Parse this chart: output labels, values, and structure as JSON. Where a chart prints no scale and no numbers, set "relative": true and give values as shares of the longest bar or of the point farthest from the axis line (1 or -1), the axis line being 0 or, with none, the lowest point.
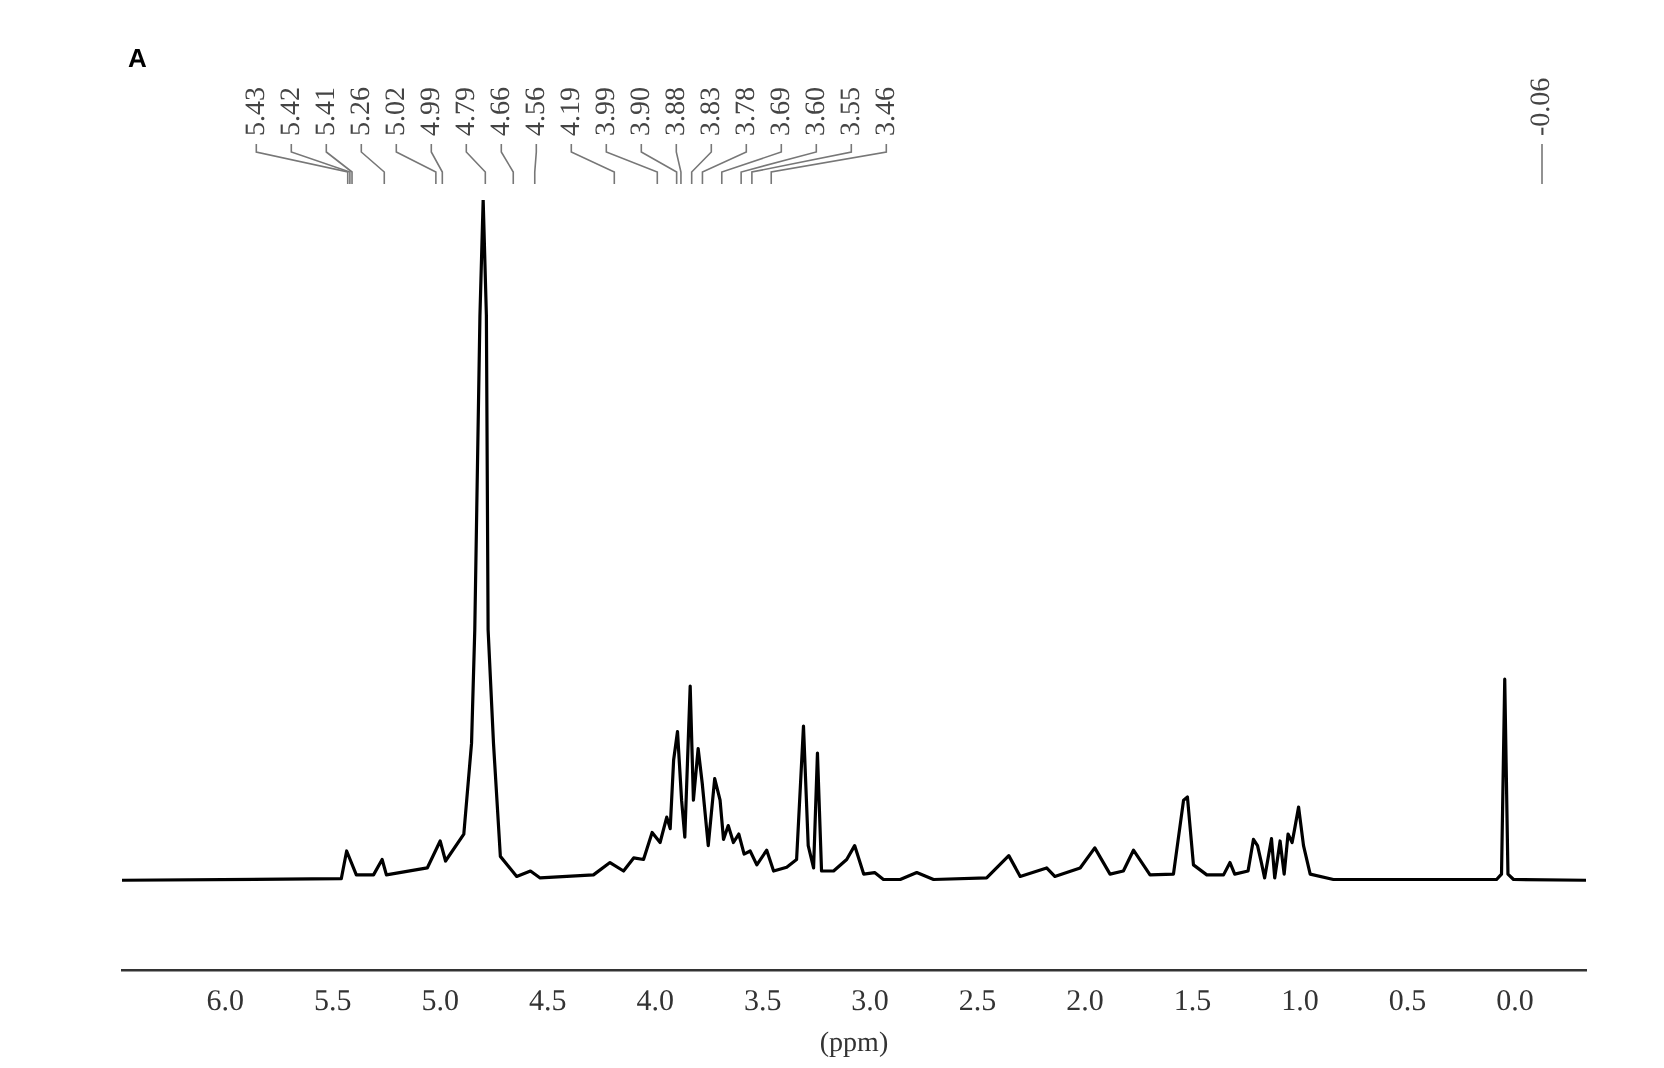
{
  "chart_data": {
    "type": "line",
    "title": "A",
    "xlabel": "(ppm)",
    "relative": true,
    "grid": false,
    "legend": false,
    "marker": "none",
    "line_style": "solid",
    "xlim": [
      6.48,
      -0.33
    ],
    "xticks": [
      {
        "value": 6,
        "label": "6.0"
      },
      {
        "value": 5.5,
        "label": "5.5"
      },
      {
        "value": 5,
        "label": "5.0"
      },
      {
        "value": 4.5,
        "label": "4.5"
      },
      {
        "value": 4,
        "label": "4.0"
      },
      {
        "value": 3.5,
        "label": "3.5"
      },
      {
        "value": 3,
        "label": "3.0"
      },
      {
        "value": 2.5,
        "label": "2.5"
      },
      {
        "value": 2,
        "label": "2.0"
      },
      {
        "value": 1.5,
        "label": "1.5"
      },
      {
        "value": 1,
        "label": "1.0"
      },
      {
        "value": 0.5,
        "label": "0.5"
      },
      {
        "value": 0,
        "label": "0.0"
      }
    ],
    "series": [
      {
        "color": "#000000",
        "x": [
          6.48,
          5.46,
          5.435,
          5.39,
          5.31,
          5.27,
          5.25,
          5.06,
          5.0,
          4.975,
          4.89,
          4.854,
          4.839,
          4.815,
          4.8,
          4.785,
          4.777,
          4.752,
          4.72,
          4.644,
          4.58,
          4.535,
          4.287,
          4.21,
          4.147,
          4.1,
          4.054,
          4.014,
          3.977,
          3.946,
          3.93,
          3.914,
          3.896,
          3.877,
          3.862,
          3.837,
          3.822,
          3.8,
          3.781,
          3.753,
          3.723,
          3.698,
          3.682,
          3.66,
          3.636,
          3.611,
          3.586,
          3.558,
          3.527,
          3.481,
          3.449,
          3.388,
          3.342,
          3.31,
          3.288,
          3.263,
          3.245,
          3.226,
          3.17,
          3.109,
          3.072,
          3.03,
          2.979,
          2.938,
          2.86,
          2.783,
          2.705,
          2.458,
          2.355,
          2.302,
          2.179,
          2.141,
          2.023,
          1.955,
          1.884,
          1.822,
          1.775,
          1.698,
          1.589,
          1.542,
          1.524,
          1.496,
          1.434,
          1.356,
          1.326,
          1.304,
          1.242,
          1.217,
          1.198,
          1.18,
          1.165,
          1.133,
          1.118,
          1.093,
          1.074,
          1.056,
          1.037,
          1.025,
          1.007,
          0.984,
          0.953,
          0.845,
          0.086,
          0.063,
          0.048,
          0.033,
          0.007,
          -0.33
        ],
        "values": [
          0.117,
          0.119,
          0.155,
          0.124,
          0.124,
          0.144,
          0.124,
          0.133,
          0.168,
          0.142,
          0.177,
          0.295,
          0.442,
          0.85,
          1,
          0.85,
          0.442,
          0.295,
          0.148,
          0.122,
          0.129,
          0.12,
          0.124,
          0.14,
          0.129,
          0.146,
          0.144,
          0.179,
          0.166,
          0.199,
          0.184,
          0.273,
          0.31,
          0.221,
          0.173,
          0.369,
          0.221,
          0.288,
          0.243,
          0.162,
          0.249,
          0.221,
          0.17,
          0.188,
          0.166,
          0.177,
          0.151,
          0.155,
          0.137,
          0.156,
          0.129,
          0.134,
          0.144,
          0.317,
          0.162,
          0.133,
          0.282,
          0.129,
          0.129,
          0.144,
          0.162,
          0.125,
          0.127,
          0.118,
          0.118,
          0.127,
          0.118,
          0.12,
          0.149,
          0.122,
          0.133,
          0.122,
          0.133,
          0.159,
          0.125,
          0.129,
          0.156,
          0.124,
          0.125,
          0.221,
          0.225,
          0.137,
          0.124,
          0.124,
          0.14,
          0.125,
          0.129,
          0.17,
          0.162,
          0.14,
          0.12,
          0.171,
          0.12,
          0.168,
          0.125,
          0.177,
          0.166,
          0.184,
          0.212,
          0.162,
          0.125,
          0.118,
          0.118,
          0.125,
          0.378,
          0.125,
          0.118,
          0.117
        ]
      }
    ],
    "annotations": [
      {
        "text": "5.43",
        "x": 5.43
      },
      {
        "text": "5.42",
        "x": 5.42
      },
      {
        "text": "5.41",
        "x": 5.41
      },
      {
        "text": "5.26",
        "x": 5.26
      },
      {
        "text": "5.02",
        "x": 5.02
      },
      {
        "text": "4.99",
        "x": 4.99
      },
      {
        "text": "4.79",
        "x": 4.79
      },
      {
        "text": "4.66",
        "x": 4.66
      },
      {
        "text": "4.56",
        "x": 4.56
      },
      {
        "text": "4.19",
        "x": 4.19
      },
      {
        "text": "3.99",
        "x": 3.99
      },
      {
        "text": "3.90",
        "x": 3.9
      },
      {
        "text": "3.88",
        "x": 3.88
      },
      {
        "text": "3.83",
        "x": 3.83
      },
      {
        "text": "3.78",
        "x": 3.78
      },
      {
        "text": "3.69",
        "x": 3.69
      },
      {
        "text": "3.60",
        "x": 3.6
      },
      {
        "text": "3.55",
        "x": 3.55
      },
      {
        "text": "3.46",
        "x": 3.46
      },
      "-0.06"
    ]
  }
}
